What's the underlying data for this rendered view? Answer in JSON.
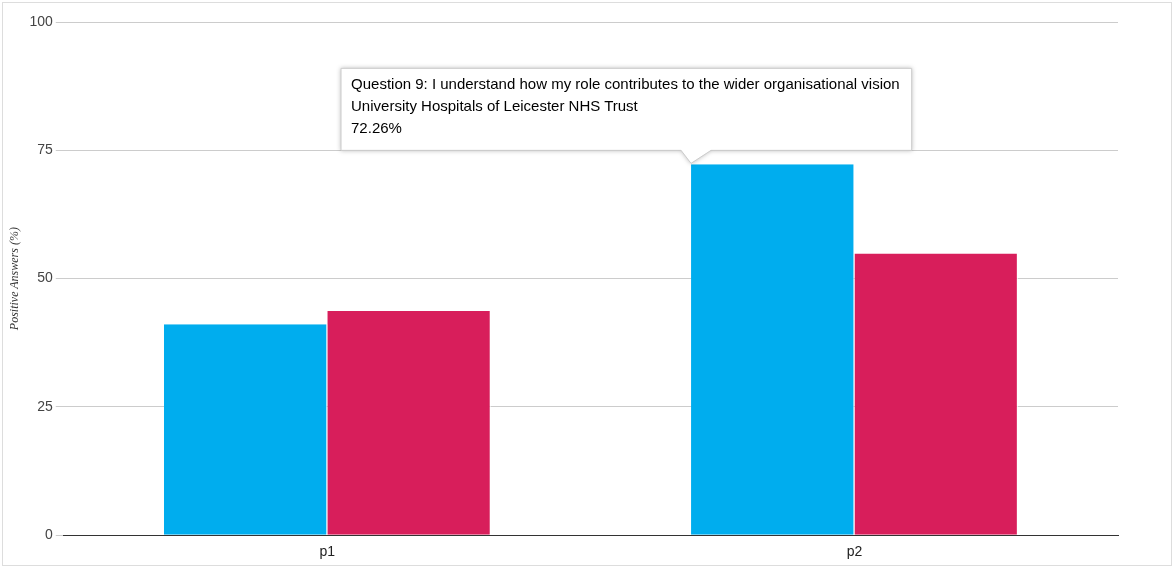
{
  "chart_data": {
    "type": "bar",
    "ylabel": "Positive Answers (%)",
    "categories": [
      "p1",
      "p2"
    ],
    "series": [
      {
        "color": "#00adee",
        "values": [
          41.1,
          72.26
        ]
      },
      {
        "color": "#d81e5b",
        "values": [
          43.7,
          54.9
        ]
      }
    ],
    "ylim": [
      0,
      100
    ],
    "yticks": [
      0,
      25,
      50,
      75,
      100
    ],
    "grid": "y",
    "legend": false,
    "annotations": [
      {
        "text": "Question 9: I understand how my role contributes to the wider organisational vision\nUniversity Hospitals of Leicester NHS Trust\n72.26%",
        "x": "p2",
        "y": 72.26
      }
    ]
  }
}
